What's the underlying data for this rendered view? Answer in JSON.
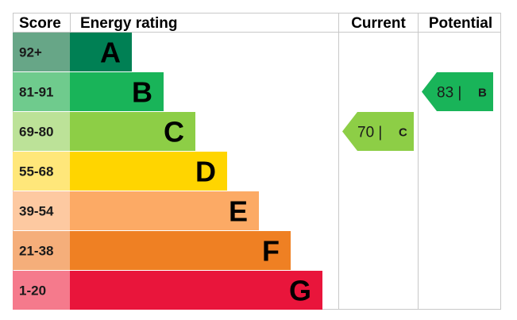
{
  "headers": {
    "score": "Score",
    "rating": "Energy rating",
    "current": "Current",
    "potential": "Potential"
  },
  "chart_data": {
    "type": "bar",
    "categories": [
      "A",
      "B",
      "C",
      "D",
      "E",
      "F",
      "G"
    ],
    "bands": [
      {
        "letter": "A",
        "score": "92+",
        "color": "#008054",
        "score_bg": "#67a687",
        "level": 1,
        "text_color": "#000000"
      },
      {
        "letter": "B",
        "score": "81-91",
        "color": "#19b459",
        "score_bg": "#6fcb8d",
        "level": 2,
        "text_color": "#000000"
      },
      {
        "letter": "C",
        "score": "69-80",
        "color": "#8dce46",
        "score_bg": "#bce298",
        "level": 3,
        "text_color": "#000000"
      },
      {
        "letter": "D",
        "score": "55-68",
        "color": "#ffd500",
        "score_bg": "#ffe77a",
        "level": 4,
        "text_color": "#000000"
      },
      {
        "letter": "E",
        "score": "39-54",
        "color": "#fcaa65",
        "score_bg": "#fdc9a1",
        "level": 5,
        "text_color": "#000000"
      },
      {
        "letter": "F",
        "score": "21-38",
        "color": "#ef8023",
        "score_bg": "#f5ae7a",
        "level": 6,
        "text_color": "#000000"
      },
      {
        "letter": "G",
        "score": "1-20",
        "color": "#e9153b",
        "score_bg": "#f57a8c",
        "level": 7,
        "text_color": "#000000"
      }
    ],
    "current": {
      "value": 70,
      "num_label": "70 |",
      "letter": "C",
      "color": "#8dce46"
    },
    "potential": {
      "value": 83,
      "num_label": "83 |",
      "letter": "B",
      "color": "#19b459"
    }
  }
}
